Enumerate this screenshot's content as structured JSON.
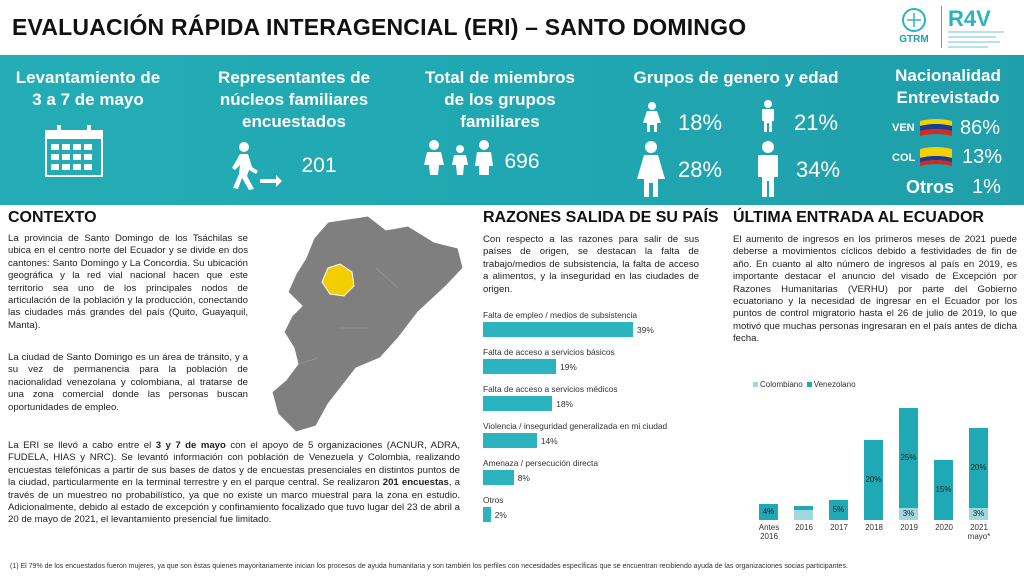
{
  "header": {
    "title": "EVALUACIÓN RÁPIDA INTERAGENCIAL (ERI) – SANTO DOMINGO",
    "logo_gtrm": "GTRM",
    "logo_r4v": "R4V"
  },
  "banner": {
    "survey": {
      "line1": "Levantamiento de",
      "line2": "3 a 7 de mayo"
    },
    "representatives": {
      "line1": "Representantes de",
      "line2": "núcleos familiares",
      "line3": "encuestados",
      "value": "201"
    },
    "members": {
      "line1": "Total de miembros",
      "line2": "de los grupos",
      "line3": "familiares",
      "value": "696"
    },
    "groups": {
      "title": "Grupos de genero y edad",
      "girl": "18%",
      "boy": "21%",
      "woman": "28%",
      "man": "34%"
    },
    "nationality": {
      "title1": "Nacionalidad",
      "title2": "Entrevistado",
      "ven_label": "VEN",
      "ven_value": "86%",
      "col_label": "COL",
      "col_value": "13%",
      "others_label": "Otros",
      "others_value": "1%"
    }
  },
  "contexto": {
    "title": "CONTEXTO",
    "p1": "La provincia de Santo Domingo de los Tsáchilas se ubica en el centro norte del Ecuador y se divide en dos cantones: Santo Domingo y La Concordia. Su ubicación geográfica y la red vial nacional hacen que este territorio sea uno de los principales nodos de articulación de la población y la producción, conectando las ciudades más grandes del país (Quito, Guayaquil, Manta).",
    "p2": "La ciudad de Santo Domingo es un área de tránsito, y a su vez de permanencia para la población de nacionalidad venezolana y colombiana, al tratarse de una zona comercial donde las personas buscan oportunidades de empleo.",
    "p3_a": "La ERI se llevó a cabo entre el ",
    "p3_b": "3 y 7 de mayo",
    "p3_c": " con el apoyo de 5 organizaciones (ACNUR, ADRA, FUDELA, HIAS y NRC). Se levantó información con población de Venezuela y Colombia, realizando encuestas telefónicas a partir de sus bases de datos y de encuestas presenciales en distintos puntos de la ciudad, particularmente en la terminal terrestre y en el parque central. Se realizaron ",
    "p3_d": "201 encuestas",
    "p3_e": ", a través de un muestreo no probabilístico, ya que no existe un marco muestral para la zona en estudio. Adicionalmente, debido al estado de excepción y confinamiento focalizado que tuvo lugar del 23 de abril a 20 de mayo de 2021, el levantamiento presencial fue limitado."
  },
  "razones": {
    "title": "RAZONES SALIDA DE SU PAÍS",
    "text": "Con respecto a las razones para salir de sus países de origen, se destacan la falta de trabajo/medios de subsistencia, la falta de acceso a alimentos, y la inseguridad en las ciudades de origen."
  },
  "ultima": {
    "title": "ÚLTIMA ENTRADA AL ECUADOR",
    "text": "El aumento de ingresos en los primeros meses de 2021 puede deberse a movimientos cíclicos debido a festividades de fin de año. En cuanto al alto número de ingresos al país en 2019, es importante destacar el anuncio del visado de Excepción por Razones Humanitarias (VERHU) por parte del Gobierno ecuatoriano y la necesidad de ingresar en el Ecuador por los puntos de control migratorio hasta el 26 de julio de 2019, lo que motivó que muchas personas ingresaran en el país antes de dicha fecha."
  },
  "chart_data": [
    {
      "type": "bar",
      "orientation": "horizontal",
      "categories": [
        "Falta de empleo / medios de subsistencia",
        "Falta de acceso a servicios básicos",
        "Falta de acceso a servicios médicos",
        "Violencia / inseguridad generalizada en mi ciudad",
        "Amenaza / persecución directa",
        "Otros"
      ],
      "values": [
        39,
        19,
        18,
        14,
        8,
        2
      ],
      "value_labels": [
        "39%",
        "19%",
        "18%",
        "14%",
        "8%",
        "2%"
      ]
    },
    {
      "type": "bar",
      "stacked": true,
      "categories": [
        "Antes 2016",
        "2016",
        "2017",
        "2018",
        "2019",
        "2020",
        "2021 mayo*"
      ],
      "series": [
        {
          "name": "Colombiano",
          "values": [
            0,
            1,
            0,
            0,
            3,
            0,
            3
          ],
          "value_labels": [
            "",
            "",
            "",
            "",
            "3%",
            "",
            "3%"
          ]
        },
        {
          "name": "Venezolano",
          "values": [
            4,
            1,
            5,
            20,
            25,
            15,
            20
          ],
          "value_labels": [
            "4%",
            "",
            "5%",
            "20%",
            "25%",
            "15%",
            "20%"
          ]
        }
      ],
      "legend": "top-left",
      "colors": {
        "Colombiano": "#9fd9de",
        "Venezolano": "#1fa9b4"
      }
    }
  ],
  "footnote": "(1) El 79% de los encuestados fueron mujeres, ya que son éstas quienes mayoritariamente inician los procesos de ayuda humanitaria y son también los perfiles con necesidades específicas que se encuentran recibiendo ayuda de las organizaciones socias participantes."
}
